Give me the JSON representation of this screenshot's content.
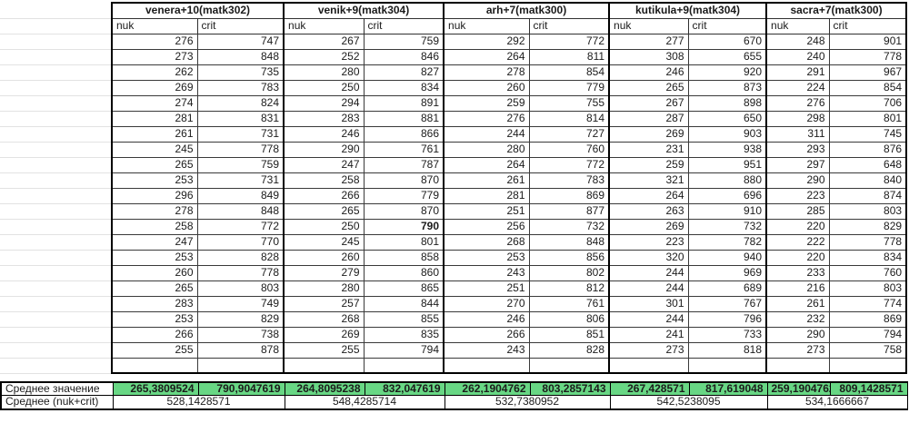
{
  "table": {
    "groups": [
      {
        "label": "venera+10(matk302)",
        "sub": [
          "nuk",
          "crit"
        ]
      },
      {
        "label": "venik+9(matk304)",
        "sub": [
          "nuk",
          "crit"
        ]
      },
      {
        "label": "arh+7(matk300)",
        "sub": [
          "nuk",
          "crit"
        ]
      },
      {
        "label": "kutikula+9(matk304)",
        "sub": [
          "nuk",
          "crit"
        ]
      },
      {
        "label": "sacra+7(matk300)",
        "sub": [
          "nuk",
          "crit"
        ]
      }
    ],
    "rows": [
      [
        276,
        747,
        267,
        759,
        292,
        772,
        277,
        670,
        248,
        901
      ],
      [
        273,
        848,
        252,
        846,
        264,
        811,
        308,
        655,
        240,
        778
      ],
      [
        262,
        735,
        280,
        827,
        278,
        854,
        246,
        920,
        291,
        967
      ],
      [
        269,
        783,
        250,
        834,
        260,
        779,
        265,
        873,
        224,
        854
      ],
      [
        274,
        824,
        294,
        891,
        259,
        755,
        267,
        898,
        276,
        706
      ],
      [
        281,
        831,
        283,
        881,
        276,
        814,
        287,
        650,
        298,
        801
      ],
      [
        261,
        731,
        246,
        866,
        244,
        727,
        269,
        903,
        311,
        745
      ],
      [
        245,
        778,
        290,
        761,
        280,
        760,
        231,
        938,
        293,
        876
      ],
      [
        265,
        759,
        247,
        787,
        264,
        772,
        259,
        951,
        297,
        648
      ],
      [
        253,
        731,
        258,
        870,
        261,
        783,
        321,
        880,
        290,
        840
      ],
      [
        296,
        849,
        266,
        779,
        281,
        869,
        264,
        696,
        223,
        874
      ],
      [
        278,
        848,
        265,
        870,
        251,
        877,
        263,
        910,
        285,
        803
      ],
      [
        258,
        772,
        250,
        790,
        256,
        732,
        269,
        732,
        220,
        829
      ],
      [
        247,
        770,
        245,
        801,
        268,
        848,
        223,
        782,
        222,
        778
      ],
      [
        253,
        828,
        260,
        858,
        253,
        856,
        320,
        940,
        220,
        834
      ],
      [
        260,
        778,
        279,
        860,
        243,
        802,
        244,
        969,
        233,
        760
      ],
      [
        265,
        803,
        280,
        865,
        251,
        812,
        244,
        689,
        216,
        803
      ],
      [
        283,
        749,
        257,
        844,
        270,
        761,
        301,
        767,
        261,
        774
      ],
      [
        253,
        829,
        268,
        855,
        246,
        806,
        244,
        796,
        232,
        869
      ],
      [
        266,
        738,
        269,
        835,
        266,
        851,
        241,
        733,
        290,
        794
      ],
      [
        255,
        878,
        255,
        794,
        243,
        828,
        273,
        818,
        273,
        758
      ]
    ],
    "bold_cell": {
      "row": 12,
      "col": 3
    }
  },
  "summary": {
    "avg_label": "Среднее значение",
    "avg_values": [
      "265,3809524",
      "790,9047619",
      "264,8095238",
      "832,047619",
      "262,1904762",
      "803,2857143",
      "267,428571",
      "817,619048",
      "259,1904762",
      "809,1428571"
    ],
    "combined_label": "Среднее (nuk+crit)",
    "combined_values": [
      "528,1428571",
      "548,4285714",
      "532,7380952",
      "542,5238095",
      "534,1666667"
    ]
  },
  "colors": {
    "highlight": "#68d784"
  }
}
